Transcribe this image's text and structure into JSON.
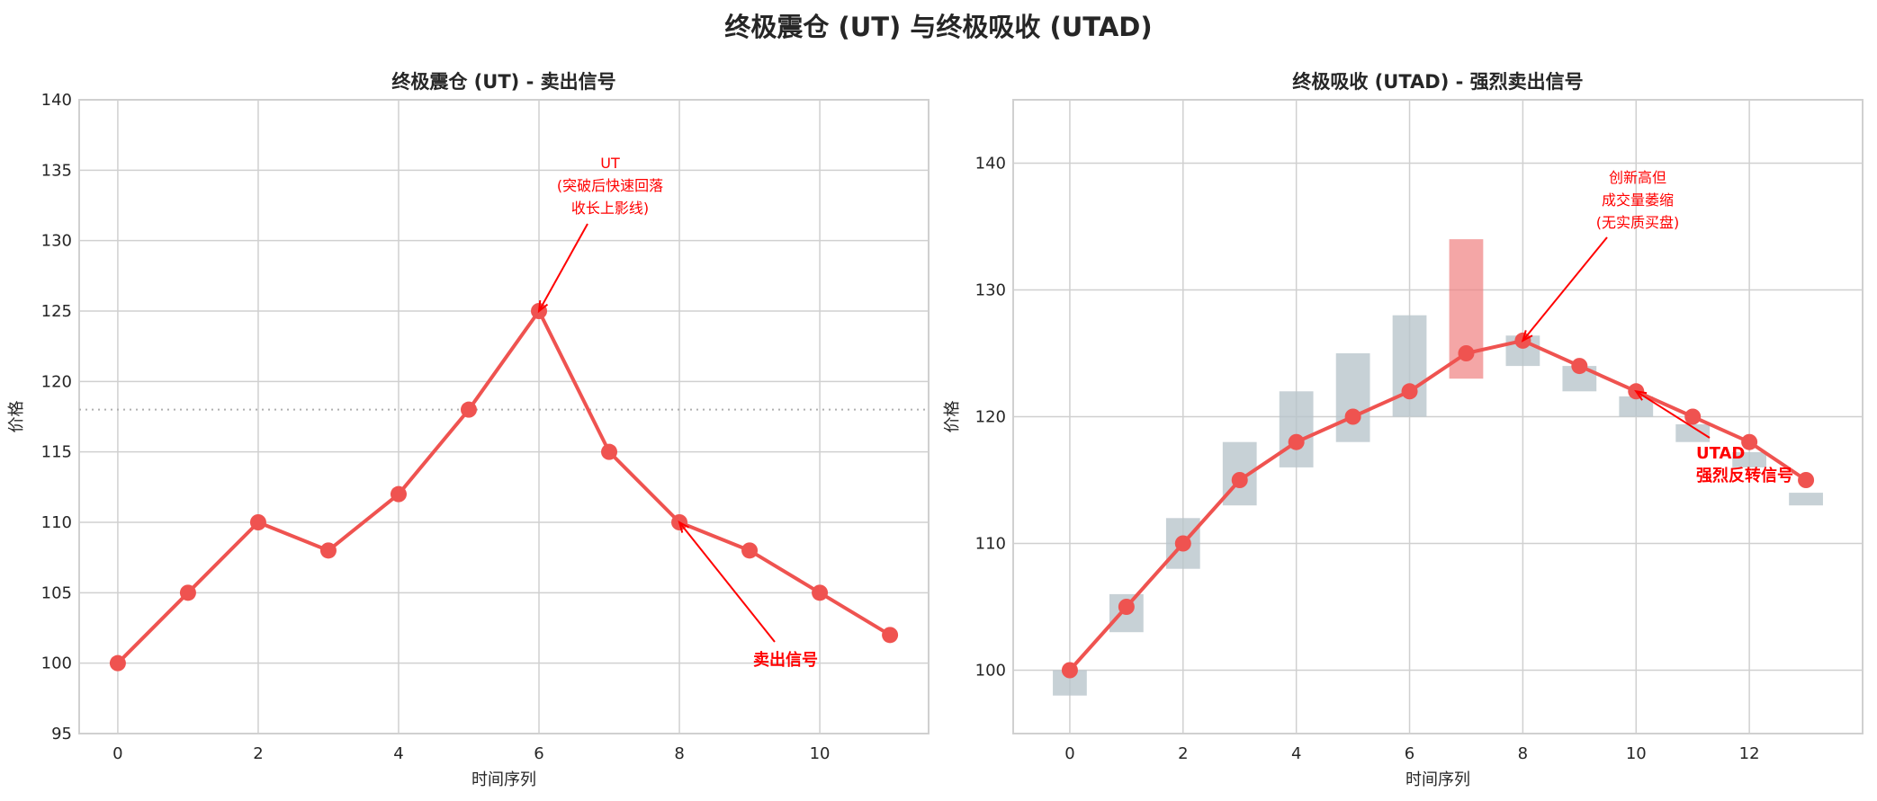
{
  "figure_title": "终极震仓 (UT) 与终极吸收 (UTAD)",
  "colors": {
    "line": "#ef5350",
    "annotation": "#ff0000",
    "bar": "#b7c4cb",
    "bar_highlight": "#f08080",
    "grid": "#d0d0d0"
  },
  "chart_data": [
    {
      "type": "line",
      "title": "终极震仓 (UT) - 卖出信号",
      "xlabel": "时间序列",
      "ylabel": "价格",
      "x": [
        0,
        1,
        2,
        3,
        4,
        5,
        6,
        7,
        8,
        9,
        10,
        11
      ],
      "y": [
        100,
        105,
        110,
        108,
        112,
        118,
        125,
        115,
        110,
        108,
        105,
        102
      ],
      "xlim": [
        -0.55,
        11.55
      ],
      "ylim": [
        95,
        140
      ],
      "xticks": [
        "0",
        "2",
        "4",
        "6",
        "8",
        "10"
      ],
      "yticks": [
        "95",
        "100",
        "105",
        "110",
        "115",
        "120",
        "125",
        "130",
        "135",
        "140"
      ],
      "reference_line": {
        "y": 118,
        "style": "dotted"
      },
      "grid": true,
      "annotations": [
        {
          "lines": [
            "UT",
            "(突破后快速回落",
            "收长上影线)"
          ],
          "target": [
            6,
            125
          ],
          "bold": false
        },
        {
          "lines": [
            "卖出信号"
          ],
          "target": [
            8,
            110
          ],
          "bold": true
        }
      ]
    },
    {
      "type": "line+range-bars",
      "title": "终极吸收 (UTAD) - 强烈卖出信号",
      "xlabel": "时间序列",
      "ylabel": "价格",
      "x": [
        0,
        1,
        2,
        3,
        4,
        5,
        6,
        7,
        8,
        9,
        10,
        11,
        12,
        13
      ],
      "y": [
        100,
        105,
        110,
        115,
        118,
        120,
        122,
        125,
        126,
        124,
        122,
        120,
        118,
        115
      ],
      "bars": [
        {
          "x": 0,
          "low": 98,
          "high": 100
        },
        {
          "x": 1,
          "low": 103,
          "high": 106
        },
        {
          "x": 2,
          "low": 108,
          "high": 112
        },
        {
          "x": 3,
          "low": 113,
          "high": 118
        },
        {
          "x": 4,
          "low": 116,
          "high": 122
        },
        {
          "x": 5,
          "low": 118,
          "high": 125
        },
        {
          "x": 6,
          "low": 120,
          "high": 128
        },
        {
          "x": 7,
          "low": 123,
          "high": 134,
          "highlight": true
        },
        {
          "x": 8,
          "low": 124,
          "high": 126.4
        },
        {
          "x": 9,
          "low": 122,
          "high": 124
        },
        {
          "x": 10,
          "low": 120,
          "high": 121.6
        },
        {
          "x": 11,
          "low": 118,
          "high": 119.4
        },
        {
          "x": 12,
          "low": 116,
          "high": 117.2
        },
        {
          "x": 13,
          "low": 113,
          "high": 114
        }
      ],
      "xlim": [
        -1,
        14
      ],
      "ylim": [
        95,
        145
      ],
      "xticks": [
        "0",
        "2",
        "4",
        "6",
        "8",
        "10",
        "12"
      ],
      "yticks": [
        "100",
        "110",
        "120",
        "130",
        "140"
      ],
      "grid": true,
      "annotations": [
        {
          "lines": [
            "创新高但",
            "成交量萎缩",
            "(无实质买盘)"
          ],
          "target": [
            8,
            126
          ],
          "bold": false
        },
        {
          "lines": [
            "UTAD",
            "强烈反转信号"
          ],
          "target": [
            10,
            122
          ],
          "bold": true
        }
      ]
    }
  ]
}
